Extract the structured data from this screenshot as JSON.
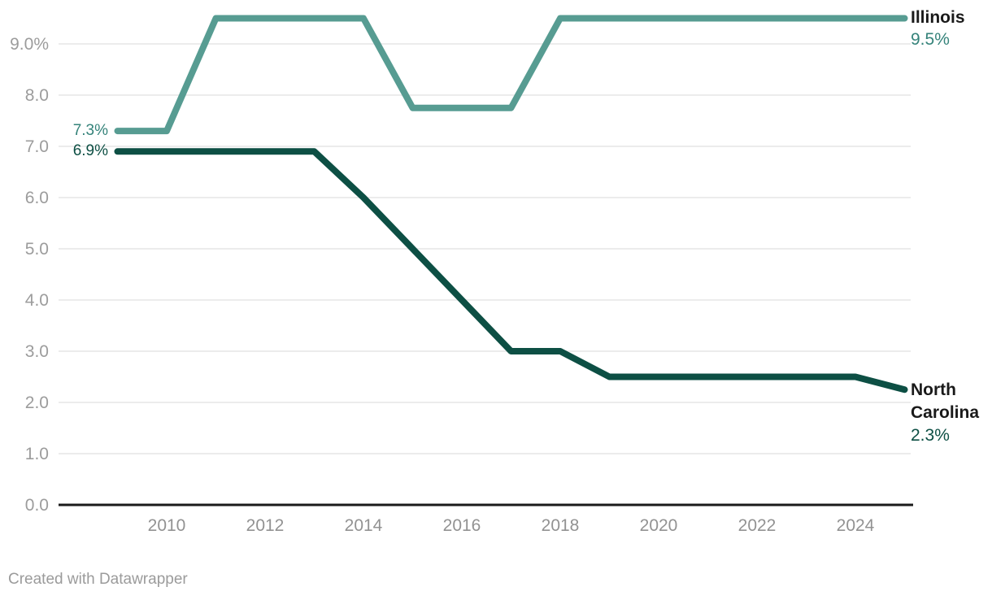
{
  "chart_data": {
    "type": "line",
    "x": [
      2009,
      2010,
      2011,
      2012,
      2013,
      2014,
      2015,
      2016,
      2017,
      2018,
      2019,
      2020,
      2021,
      2022,
      2023,
      2024,
      2025
    ],
    "series": [
      {
        "name": "Illinois",
        "values": [
          7.3,
          7.3,
          9.5,
          9.5,
          9.5,
          9.5,
          7.75,
          7.75,
          7.75,
          9.5,
          9.5,
          9.5,
          9.5,
          9.5,
          9.5,
          9.5,
          9.5
        ],
        "color": "#579c92",
        "label_color": "#35837a",
        "start_label": "7.3%",
        "end_label": "9.5%"
      },
      {
        "name": "North Carolina",
        "values": [
          6.9,
          6.9,
          6.9,
          6.9,
          6.9,
          6.0,
          5.0,
          4.0,
          3.0,
          3.0,
          2.5,
          2.5,
          2.5,
          2.5,
          2.5,
          2.5,
          2.25
        ],
        "color": "#0d4f44",
        "label_color": "#0d4f44",
        "start_label": "6.9%",
        "end_label": "2.3%"
      }
    ],
    "y_ticks": [
      {
        "value": 9,
        "label": "9.0%"
      },
      {
        "value": 8,
        "label": "8.0"
      },
      {
        "value": 7,
        "label": "7.0"
      },
      {
        "value": 6,
        "label": "6.0"
      },
      {
        "value": 5,
        "label": "5.0"
      },
      {
        "value": 4,
        "label": "4.0"
      },
      {
        "value": 3,
        "label": "3.0"
      },
      {
        "value": 2,
        "label": "2.0"
      },
      {
        "value": 1,
        "label": "1.0"
      },
      {
        "value": 0,
        "label": "0.0"
      }
    ],
    "x_ticks": [
      2010,
      2012,
      2014,
      2016,
      2018,
      2020,
      2022,
      2024
    ],
    "xlim": [
      2009,
      2025
    ],
    "ylim": [
      0,
      9.75
    ],
    "grid": true,
    "legend_position": "direct-labels",
    "grid_color": "#ececec",
    "axis_color": "#1a1a1a",
    "tick_color": "#9c9c9c"
  },
  "footer": {
    "credit": "Created with Datawrapper"
  }
}
